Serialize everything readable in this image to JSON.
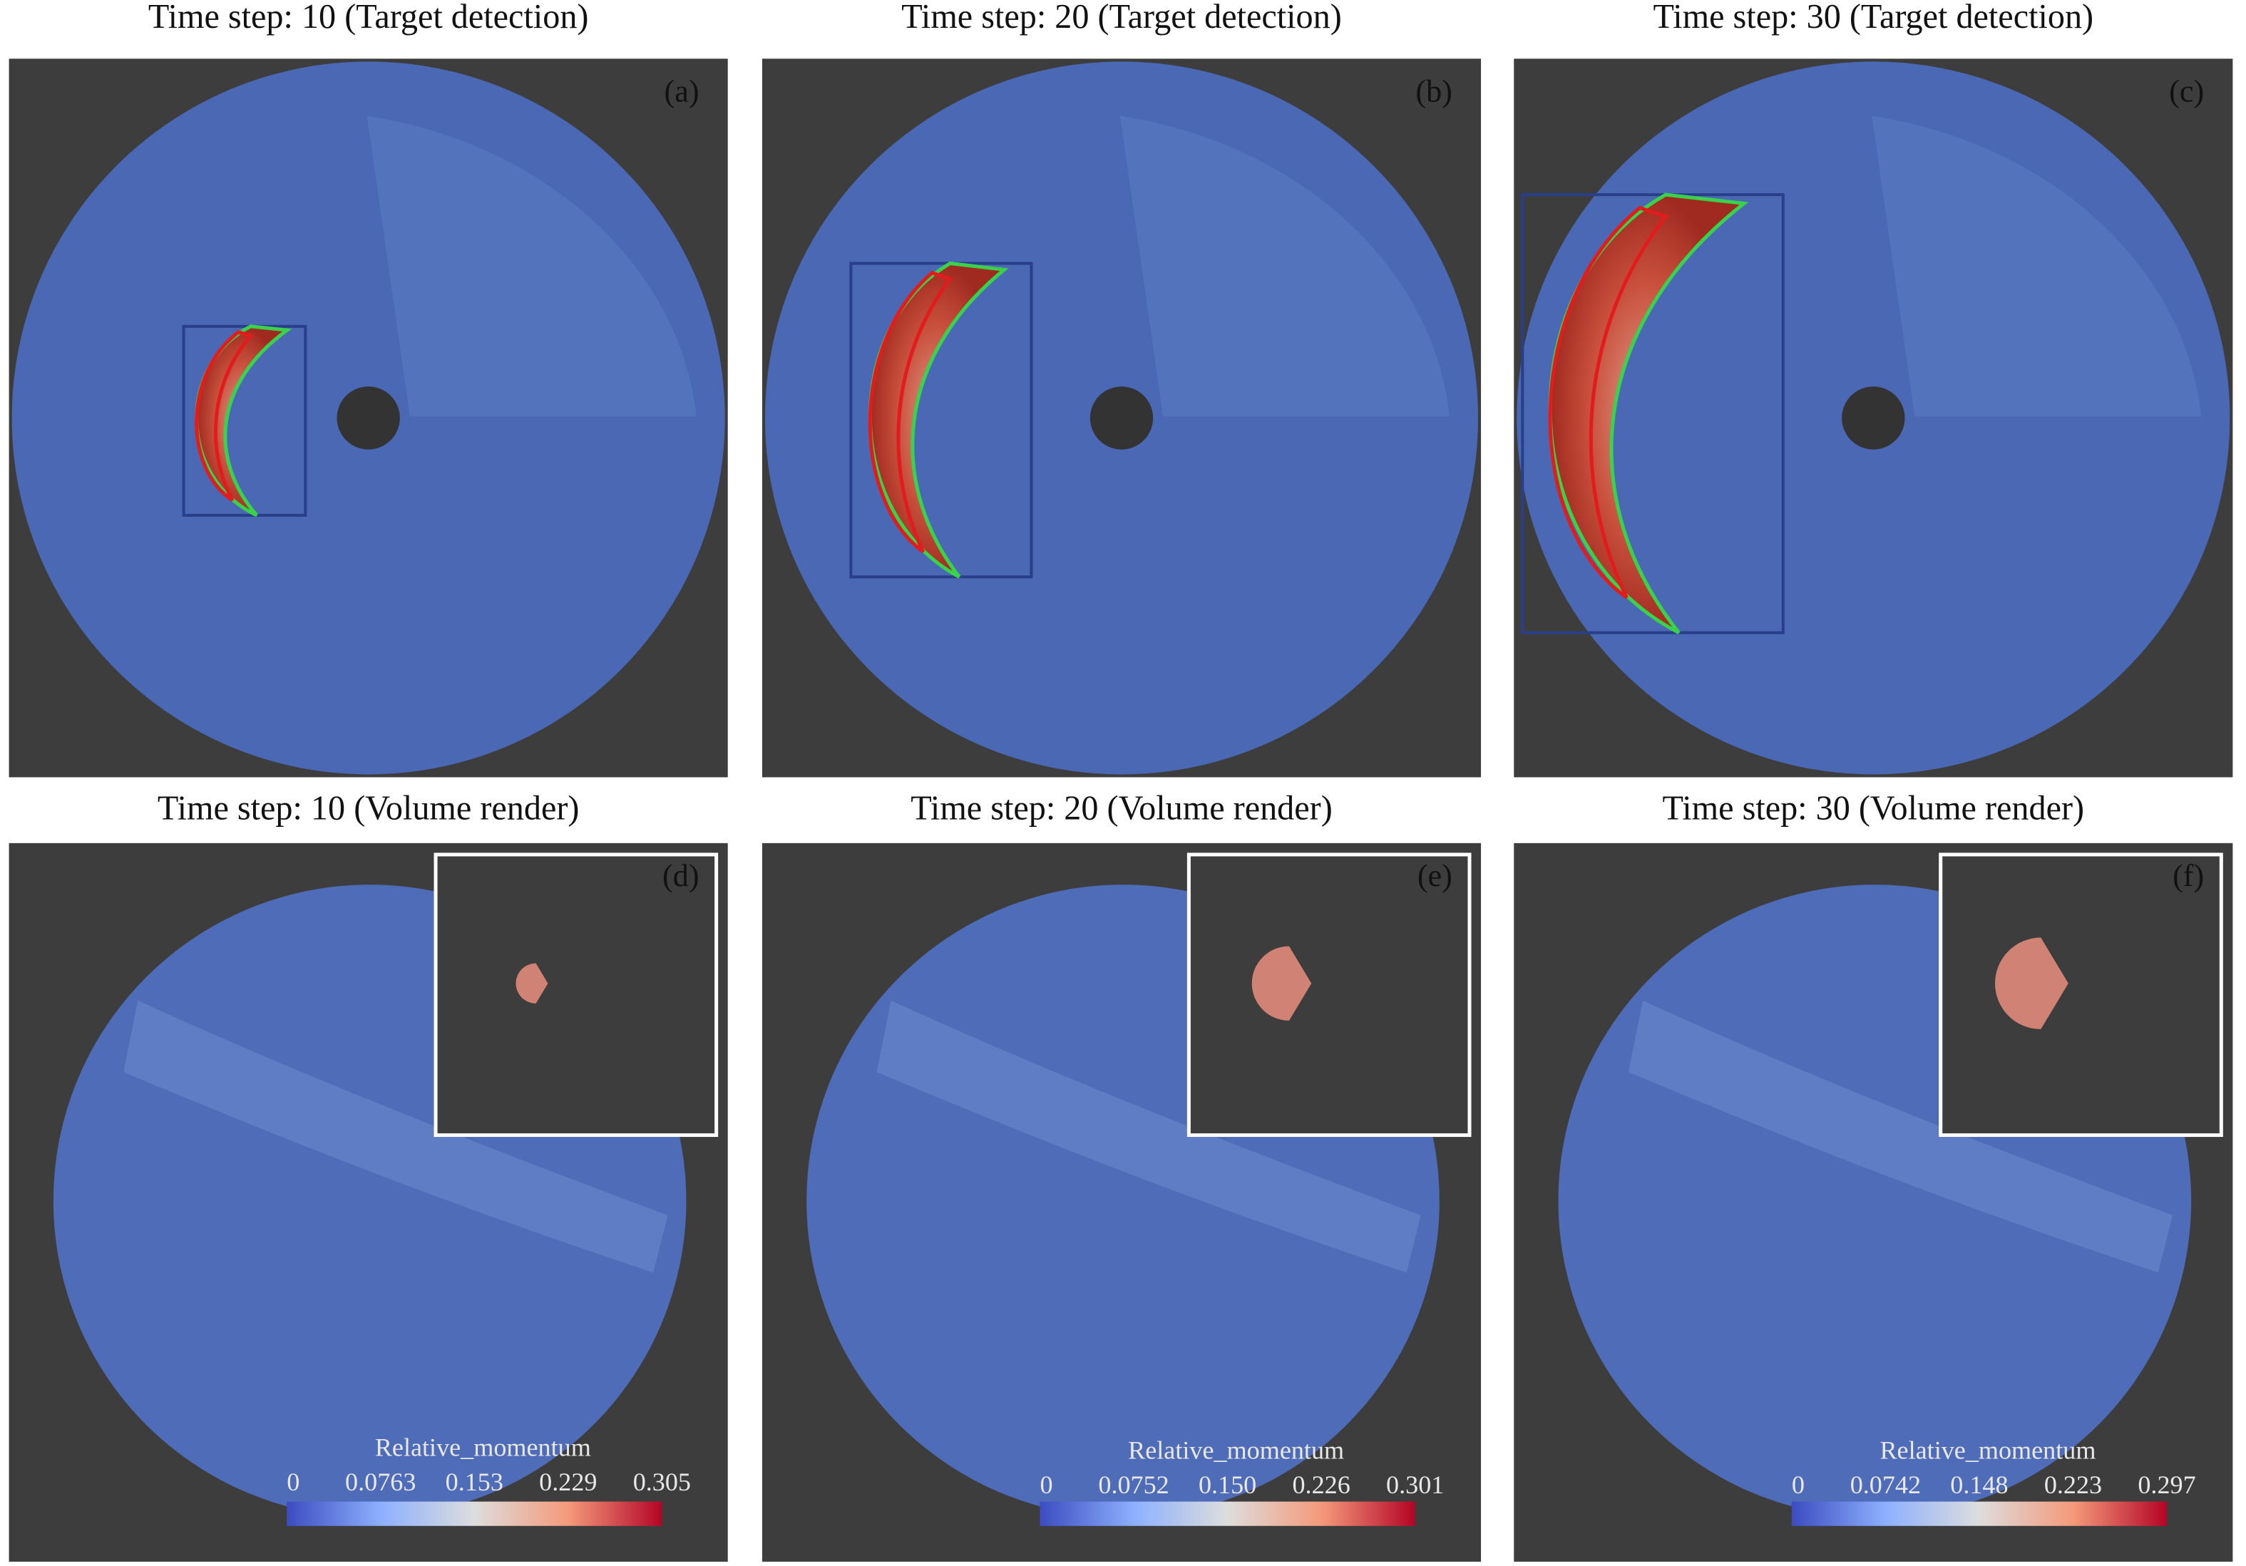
{
  "panels": [
    {
      "title": "Time step: 10 (Target detection)",
      "label": "(a)"
    },
    {
      "title": "Time step: 20 (Target detection)",
      "label": "(b)"
    },
    {
      "title": "Time step: 30 (Target detection)",
      "label": "(c)"
    },
    {
      "title": "Time step: 10 (Volume render)",
      "label": "(d)"
    },
    {
      "title": "Time step: 20 (Volume render)",
      "label": "(e)"
    },
    {
      "title": "Time step: 30 (Volume render)",
      "label": "(f)"
    }
  ],
  "colorbars": [
    {
      "title": "Relative_momentum",
      "ticks": [
        "0",
        "0.0763",
        "0.153",
        "0.229",
        "0.305"
      ]
    },
    {
      "title": "Relative_momentum",
      "ticks": [
        "0",
        "0.0752",
        "0.150",
        "0.226",
        "0.301"
      ]
    },
    {
      "title": "Relative_momentum",
      "ticks": [
        "0",
        "0.0742",
        "0.148",
        "0.223",
        "0.297"
      ]
    }
  ]
}
